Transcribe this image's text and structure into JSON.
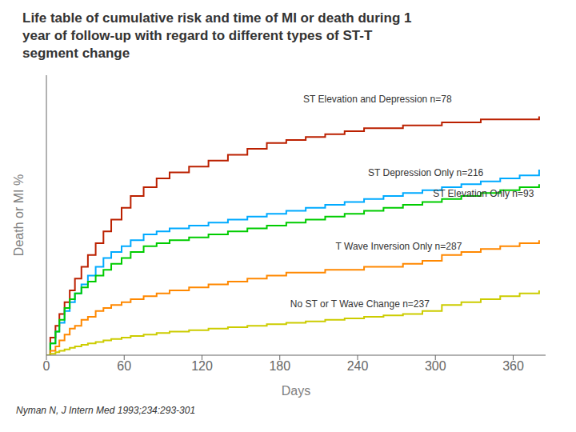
{
  "chart_data": {
    "type": "line",
    "line_style": "step",
    "title": [
      "Life table of cumulative risk and time of MI or death during 1",
      "year of follow-up with regard to different types of ST-T",
      "segment change"
    ],
    "x_label": "Days",
    "y_label": "Death or MI %",
    "caption": "Nyman N, J Intern Med 1993;234:293-301",
    "xlim": [
      0,
      385
    ],
    "xticks": [
      0,
      60,
      120,
      180,
      240,
      300,
      360
    ],
    "ylim": [
      0,
      0.95
    ],
    "tick_labels": "x",
    "grid": false,
    "x": [
      0,
      3,
      7,
      10,
      14,
      18,
      22,
      27,
      32,
      38,
      44,
      50,
      58,
      65,
      75,
      85,
      95,
      110,
      125,
      140,
      155,
      170,
      185,
      200,
      215,
      230,
      245,
      260,
      275,
      290,
      305,
      320,
      335,
      350,
      365,
      380
    ],
    "series": [
      {
        "color": "#bb2000",
        "values": [
          0,
          0.06,
          0.1,
          0.14,
          0.18,
          0.22,
          0.26,
          0.3,
          0.34,
          0.38,
          0.42,
          0.46,
          0.5,
          0.54,
          0.57,
          0.6,
          0.62,
          0.64,
          0.66,
          0.68,
          0.7,
          0.72,
          0.73,
          0.74,
          0.75,
          0.76,
          0.77,
          0.77,
          0.78,
          0.78,
          0.79,
          0.79,
          0.8,
          0.8,
          0.8,
          0.81
        ]
      },
      {
        "color": "#00aaff",
        "values": [
          0,
          0.04,
          0.08,
          0.11,
          0.15,
          0.18,
          0.21,
          0.24,
          0.27,
          0.3,
          0.33,
          0.35,
          0.37,
          0.39,
          0.41,
          0.42,
          0.43,
          0.44,
          0.45,
          0.46,
          0.47,
          0.48,
          0.49,
          0.5,
          0.51,
          0.52,
          0.53,
          0.54,
          0.55,
          0.56,
          0.57,
          0.58,
          0.59,
          0.6,
          0.61,
          0.63
        ]
      },
      {
        "color": "#00cc00",
        "values": [
          0,
          0.04,
          0.08,
          0.12,
          0.16,
          0.19,
          0.21,
          0.23,
          0.25,
          0.27,
          0.29,
          0.31,
          0.33,
          0.35,
          0.37,
          0.38,
          0.39,
          0.4,
          0.41,
          0.42,
          0.43,
          0.44,
          0.45,
          0.46,
          0.47,
          0.48,
          0.49,
          0.5,
          0.51,
          0.52,
          0.53,
          0.54,
          0.55,
          0.56,
          0.57,
          0.58
        ]
      },
      {
        "color": "#ff8800",
        "values": [
          0,
          0.015,
          0.03,
          0.05,
          0.07,
          0.09,
          0.1,
          0.12,
          0.13,
          0.15,
          0.16,
          0.17,
          0.18,
          0.19,
          0.2,
          0.21,
          0.22,
          0.23,
          0.24,
          0.25,
          0.26,
          0.27,
          0.28,
          0.28,
          0.29,
          0.29,
          0.3,
          0.3,
          0.31,
          0.32,
          0.34,
          0.35,
          0.36,
          0.37,
          0.38,
          0.39
        ]
      },
      {
        "color": "#cccc00",
        "values": [
          0,
          0.005,
          0.01,
          0.015,
          0.02,
          0.025,
          0.03,
          0.035,
          0.04,
          0.045,
          0.05,
          0.055,
          0.06,
          0.065,
          0.07,
          0.075,
          0.08,
          0.085,
          0.09,
          0.095,
          0.1,
          0.105,
          0.11,
          0.115,
          0.12,
          0.125,
          0.13,
          0.135,
          0.14,
          0.15,
          0.17,
          0.18,
          0.19,
          0.2,
          0.21,
          0.22
        ]
      }
    ],
    "annotations": [
      {
        "text": "ST Elevation and Depression n=78",
        "x": 195,
        "y": 0.87
      },
      {
        "text": "ST Depression Only n=216",
        "x": 245,
        "y": 0.62
      },
      {
        "text": "ST Elevation Only n=93",
        "x": 295,
        "y": 0.55
      },
      {
        "text": "T Wave Inversion Only n=287",
        "x": 220,
        "y": 0.37
      },
      {
        "text": "No ST or T Wave Change n=237",
        "x": 185,
        "y": 0.175
      }
    ]
  }
}
